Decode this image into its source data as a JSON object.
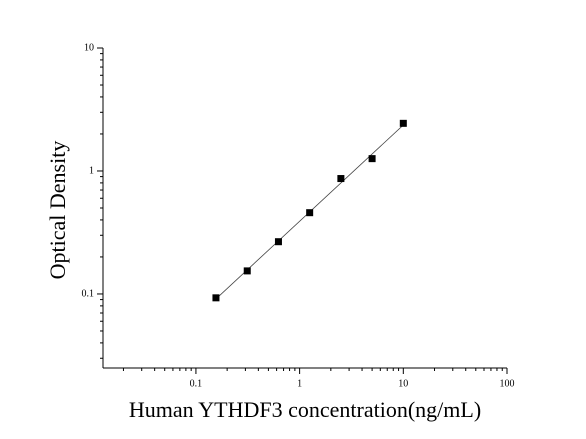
{
  "chart_data": {
    "type": "scatter",
    "x_label": "Human YTHDF3 concentration(ng/mL)",
    "y_label": "Optical Density",
    "x": [
      0.156,
      0.3125,
      0.625,
      1.25,
      2.5,
      5,
      10
    ],
    "series": [
      {
        "color": "#000000",
        "values": [
          0.093,
          0.154,
          0.266,
          0.458,
          0.868,
          1.26,
          2.44
        ]
      }
    ],
    "xlim": [
      0.0127,
      100
    ],
    "ylim": [
      0.025,
      10
    ],
    "xticks": [
      0.1,
      1,
      10,
      100
    ],
    "yticks": [
      0.1,
      1,
      10
    ],
    "log_x": true,
    "log_y": true,
    "fit_line": true
  }
}
